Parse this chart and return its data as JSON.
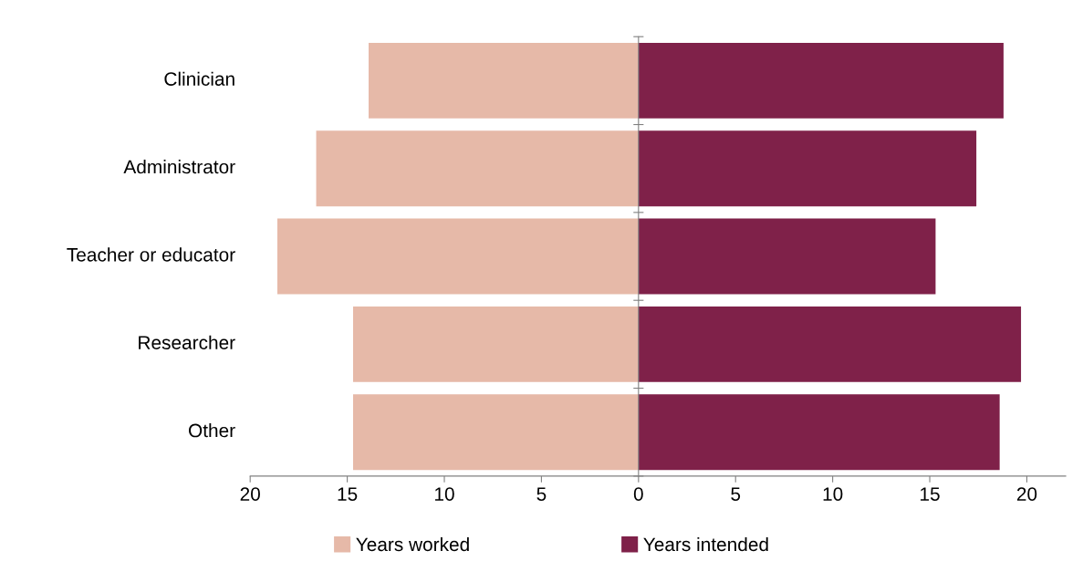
{
  "chart_data": {
    "type": "bar",
    "orientation": "horizontal",
    "stacked": true,
    "categories": [
      "Clinician",
      "Administrator",
      "Teacher or educator",
      "Researcher",
      "Other"
    ],
    "series": [
      {
        "name": "Years worked",
        "color": "#e6b9a8",
        "values": [
          -13.9,
          -16.6,
          -18.6,
          -14.7,
          -14.7
        ]
      },
      {
        "name": "Years intended",
        "color": "#7f2149",
        "values": [
          18.8,
          17.4,
          15.3,
          19.7,
          18.6
        ]
      }
    ],
    "xlim": [
      -20,
      22
    ],
    "xticks": [
      {
        "value": -20,
        "label": "20"
      },
      {
        "value": -15,
        "label": "15"
      },
      {
        "value": -10,
        "label": "10"
      },
      {
        "value": -5,
        "label": "5"
      },
      0,
      5,
      10,
      15,
      20
    ],
    "legend": "bottom"
  }
}
